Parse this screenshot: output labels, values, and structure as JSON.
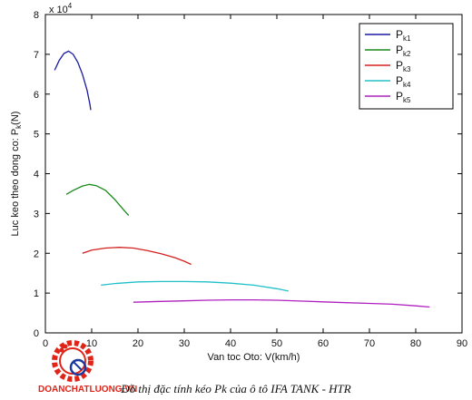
{
  "chart_data": {
    "type": "line",
    "title": "",
    "xlabel": "Van toc Oto: V(km/h)",
    "ylabel": "Luc keo theo dong co: P",
    "ylabel_sub": "k",
    "ylabel_unit": "(N)",
    "xlim": [
      0,
      90
    ],
    "ylim": [
      0,
      80000
    ],
    "x_ticks": [
      0,
      10,
      20,
      30,
      40,
      50,
      60,
      70,
      80,
      90
    ],
    "y_ticks": [
      0,
      10000,
      20000,
      30000,
      40000,
      50000,
      60000,
      70000,
      80000
    ],
    "y_tick_labels": [
      "0",
      "1",
      "2",
      "3",
      "4",
      "5",
      "6",
      "7",
      "8"
    ],
    "y_multiplier_base": "x 10",
    "y_multiplier_exp": "4",
    "grid": false,
    "legend_position": "top-right",
    "series": [
      {
        "name": "P",
        "name_sub": "k1",
        "color": "#1a1aa0",
        "points": [
          [
            2,
            66000
          ],
          [
            3,
            68500
          ],
          [
            4,
            70200
          ],
          [
            5,
            70800
          ],
          [
            6,
            70000
          ],
          [
            7,
            68000
          ],
          [
            8,
            65000
          ],
          [
            9,
            61000
          ],
          [
            9.6,
            57500
          ],
          [
            9.8,
            56000
          ]
        ]
      },
      {
        "name": "P",
        "name_sub": "k2",
        "color": "#1a8a1a",
        "points": [
          [
            4.5,
            34800
          ],
          [
            6,
            35800
          ],
          [
            8,
            36900
          ],
          [
            9.5,
            37300
          ],
          [
            11,
            37000
          ],
          [
            13,
            35800
          ],
          [
            15,
            33500
          ],
          [
            17,
            30800
          ],
          [
            18,
            29500
          ]
        ]
      },
      {
        "name": "P",
        "name_sub": "k3",
        "color": "#d42020",
        "points": [
          [
            8,
            20000
          ],
          [
            10,
            20800
          ],
          [
            13,
            21300
          ],
          [
            16,
            21500
          ],
          [
            19,
            21300
          ],
          [
            22,
            20700
          ],
          [
            25,
            19900
          ],
          [
            28,
            18900
          ],
          [
            30,
            18000
          ],
          [
            31.5,
            17200
          ]
        ]
      },
      {
        "name": "P",
        "name_sub": "k4",
        "color": "#20c0c8",
        "points": [
          [
            12,
            12000
          ],
          [
            15,
            12400
          ],
          [
            20,
            12800
          ],
          [
            25,
            12900
          ],
          [
            30,
            12900
          ],
          [
            35,
            12800
          ],
          [
            40,
            12500
          ],
          [
            45,
            12000
          ],
          [
            50,
            11100
          ],
          [
            52.5,
            10500
          ]
        ]
      },
      {
        "name": "P",
        "name_sub": "k5",
        "color": "#b020c0",
        "points": [
          [
            19,
            7700
          ],
          [
            25,
            7900
          ],
          [
            30,
            8050
          ],
          [
            35,
            8200
          ],
          [
            40,
            8300
          ],
          [
            45,
            8300
          ],
          [
            50,
            8200
          ],
          [
            55,
            8000
          ],
          [
            60,
            7800
          ],
          [
            65,
            7600
          ],
          [
            70,
            7400
          ],
          [
            75,
            7200
          ],
          [
            80,
            6800
          ],
          [
            83,
            6500
          ]
        ]
      }
    ]
  },
  "caption": "Đồ thị đặc tính kéo Pk của ô tô IFA TANK - HTR",
  "logo": {
    "text": "DOANCHATLUONG.VN",
    "color": "#e02418"
  }
}
